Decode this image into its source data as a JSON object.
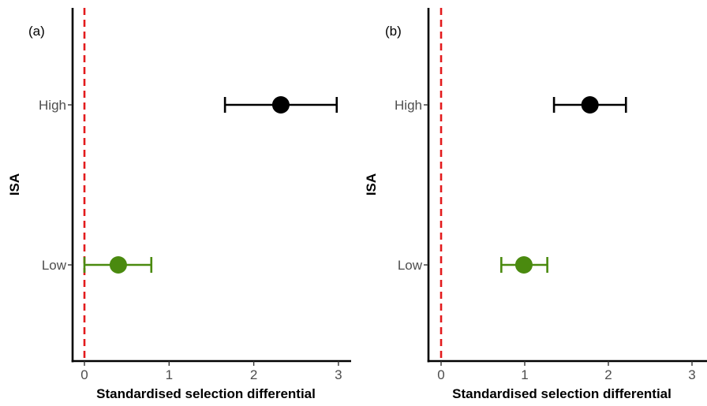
{
  "chart_data": [
    {
      "type": "scatter",
      "panel_label": "(a)",
      "xlabel": "Standardised selection differential",
      "ylabel": "ISA",
      "xlim": [
        -0.15,
        3.15
      ],
      "xticks": [
        0,
        1,
        2,
        3
      ],
      "categories": [
        "High",
        "Low"
      ],
      "reference_line": {
        "x": 0,
        "color": "#e31a1c",
        "style": "dashed"
      },
      "grid": false,
      "points": [
        {
          "category": "High",
          "estimate": 2.32,
          "lower": 1.66,
          "upper": 2.98,
          "color": "#000000"
        },
        {
          "category": "Low",
          "estimate": 0.4,
          "lower": 0.0,
          "upper": 0.79,
          "color": "#4a8a0f"
        }
      ]
    },
    {
      "type": "scatter",
      "panel_label": "(b)",
      "xlabel": "Standardised selection differential",
      "ylabel": "ISA",
      "xlim": [
        -0.15,
        3.15
      ],
      "xticks": [
        0,
        1,
        2,
        3
      ],
      "categories": [
        "High",
        "Low"
      ],
      "reference_line": {
        "x": 0,
        "color": "#e31a1c",
        "style": "dashed"
      },
      "grid": false,
      "points": [
        {
          "category": "High",
          "estimate": 1.78,
          "lower": 1.35,
          "upper": 2.21,
          "color": "#000000"
        },
        {
          "category": "Low",
          "estimate": 0.99,
          "lower": 0.72,
          "upper": 1.27,
          "color": "#4a8a0f"
        }
      ]
    }
  ]
}
